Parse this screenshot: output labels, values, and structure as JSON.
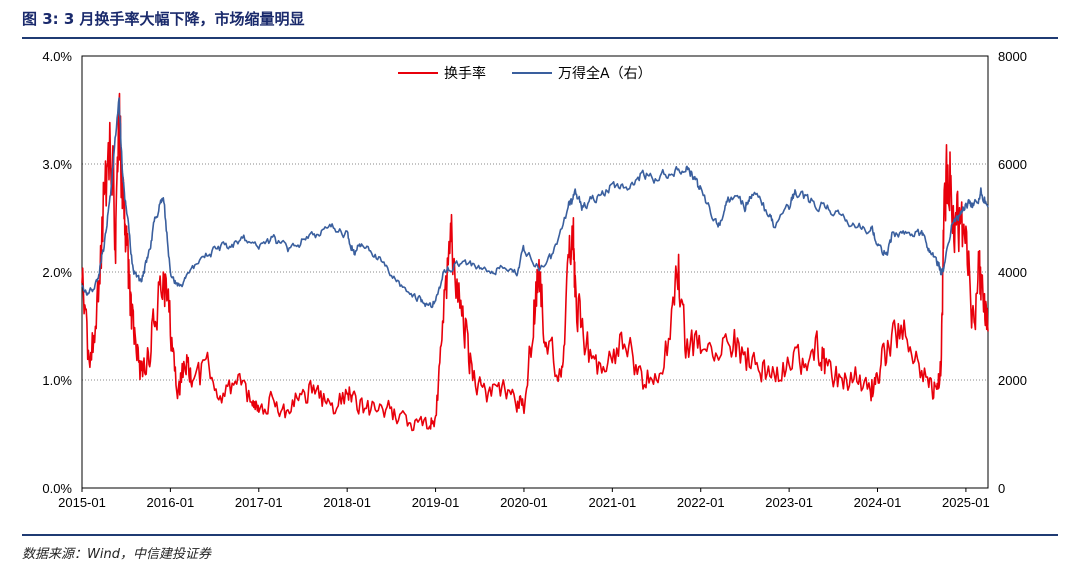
{
  "figure": {
    "title": "图 3: 3 月换手率大幅下降，市场缩量明显",
    "source": "数据来源：Wind，中信建投证券"
  },
  "chart_data": {
    "type": "line",
    "title": "图 3: 3 月换手率大幅下降，市场缩量明显",
    "x_tick_labels": [
      "2015-01",
      "2016-01",
      "2017-01",
      "2018-01",
      "2019-01",
      "2020-01",
      "2021-01",
      "2022-01",
      "2023-01",
      "2024-01",
      "2025-01"
    ],
    "x_range": [
      2015.0,
      2025.25
    ],
    "y_left": {
      "label": "换手率",
      "range": [
        0,
        4
      ],
      "ticks": [
        "0.0%",
        "1.0%",
        "2.0%",
        "3.0%",
        "4.0%"
      ]
    },
    "y_right": {
      "label": "万得全A（右）",
      "range": [
        0,
        8000
      ],
      "ticks": [
        "0",
        "2000",
        "4000",
        "6000",
        "8000"
      ]
    },
    "grid": "horizontal dotted",
    "legend_position": "top-center",
    "series": [
      {
        "name": "换手率",
        "axis": "left",
        "color": "#e8000b",
        "x": [
          2015.0,
          2015.08,
          2015.17,
          2015.25,
          2015.33,
          2015.38,
          2015.42,
          2015.46,
          2015.5,
          2015.55,
          2015.6,
          2015.67,
          2015.75,
          2015.83,
          2015.92,
          2016.0,
          2016.08,
          2016.17,
          2016.25,
          2016.42,
          2016.58,
          2016.75,
          2016.92,
          2017.0,
          2017.17,
          2017.33,
          2017.5,
          2017.67,
          2017.83,
          2018.0,
          2018.08,
          2018.25,
          2018.42,
          2018.58,
          2018.75,
          2018.92,
          2019.0,
          2019.08,
          2019.17,
          2019.22,
          2019.33,
          2019.42,
          2019.58,
          2019.75,
          2019.92,
          2020.0,
          2020.1,
          2020.17,
          2020.25,
          2020.42,
          2020.5,
          2020.55,
          2020.58,
          2020.67,
          2020.83,
          2021.0,
          2021.17,
          2021.33,
          2021.5,
          2021.67,
          2021.75,
          2021.83,
          2022.0,
          2022.17,
          2022.33,
          2022.5,
          2022.67,
          2022.83,
          2023.0,
          2023.17,
          2023.33,
          2023.42,
          2023.58,
          2023.75,
          2023.92,
          2024.0,
          2024.1,
          2024.25,
          2024.42,
          2024.58,
          2024.67,
          2024.72,
          2024.75,
          2024.8,
          2024.85,
          2024.92,
          2025.0,
          2025.08,
          2025.15,
          2025.2,
          2025.25
        ],
        "values": [
          2.0,
          1.1,
          1.6,
          2.7,
          3.2,
          2.4,
          3.3,
          2.8,
          2.4,
          1.7,
          1.3,
          1.05,
          1.2,
          1.6,
          1.95,
          1.5,
          0.85,
          1.2,
          1.0,
          1.1,
          0.85,
          0.95,
          0.8,
          0.75,
          0.8,
          0.7,
          0.9,
          0.85,
          0.75,
          0.9,
          0.8,
          0.72,
          0.75,
          0.65,
          0.6,
          0.6,
          0.65,
          1.5,
          2.4,
          2.0,
          1.5,
          1.0,
          0.9,
          0.95,
          0.8,
          0.75,
          1.5,
          2.0,
          1.3,
          1.1,
          2.0,
          2.45,
          1.8,
          1.4,
          1.1,
          1.2,
          1.4,
          1.0,
          1.0,
          1.5,
          2.0,
          1.3,
          1.3,
          1.2,
          1.4,
          1.2,
          1.1,
          1.0,
          1.1,
          1.2,
          1.3,
          1.1,
          1.0,
          1.0,
          0.9,
          1.0,
          1.3,
          1.5,
          1.2,
          1.0,
          0.9,
          1.1,
          2.5,
          3.1,
          2.5,
          2.4,
          2.3,
          1.5,
          2.0,
          1.8,
          1.45
        ]
      },
      {
        "name": "万得全A（右）",
        "axis": "right",
        "color": "#3a5f9e",
        "x": [
          2015.0,
          2015.08,
          2015.17,
          2015.25,
          2015.33,
          2015.42,
          2015.45,
          2015.5,
          2015.58,
          2015.67,
          2015.75,
          2015.83,
          2015.92,
          2016.0,
          2016.08,
          2016.17,
          2016.33,
          2016.5,
          2016.67,
          2016.83,
          2017.0,
          2017.17,
          2017.33,
          2017.5,
          2017.67,
          2017.83,
          2018.0,
          2018.08,
          2018.17,
          2018.33,
          2018.5,
          2018.67,
          2018.83,
          2018.92,
          2019.0,
          2019.1,
          2019.25,
          2019.42,
          2019.58,
          2019.75,
          2019.92,
          2020.0,
          2020.17,
          2020.33,
          2020.5,
          2020.58,
          2020.67,
          2020.83,
          2021.0,
          2021.17,
          2021.33,
          2021.5,
          2021.67,
          2021.83,
          2021.92,
          2022.0,
          2022.17,
          2022.25,
          2022.33,
          2022.5,
          2022.58,
          2022.75,
          2022.83,
          2023.0,
          2023.08,
          2023.25,
          2023.42,
          2023.58,
          2023.75,
          2023.92,
          2024.0,
          2024.1,
          2024.17,
          2024.33,
          2024.5,
          2024.58,
          2024.67,
          2024.72,
          2024.75,
          2024.83,
          2024.92,
          2025.0,
          2025.08,
          2025.17,
          2025.25
        ],
        "values": [
          3700,
          3600,
          3800,
          4500,
          5600,
          7200,
          6000,
          5200,
          4000,
          3800,
          4300,
          5000,
          5400,
          4000,
          3700,
          3900,
          4200,
          4400,
          4500,
          4600,
          4500,
          4600,
          4400,
          4600,
          4700,
          4800,
          4700,
          4400,
          4500,
          4300,
          4000,
          3600,
          3500,
          3300,
          3500,
          4000,
          4200,
          4100,
          4000,
          4100,
          4000,
          4400,
          4100,
          4300,
          5200,
          5400,
          5200,
          5400,
          5600,
          5500,
          5800,
          5700,
          5900,
          6000,
          5800,
          5500,
          4900,
          5000,
          5400,
          5200,
          5500,
          5100,
          4800,
          5200,
          5500,
          5300,
          5200,
          5000,
          4900,
          4800,
          4600,
          4300,
          4700,
          4800,
          4700,
          4400,
          4200,
          4000,
          4000,
          4800,
          5000,
          5300,
          5200,
          5500,
          5200
        ]
      }
    ]
  }
}
